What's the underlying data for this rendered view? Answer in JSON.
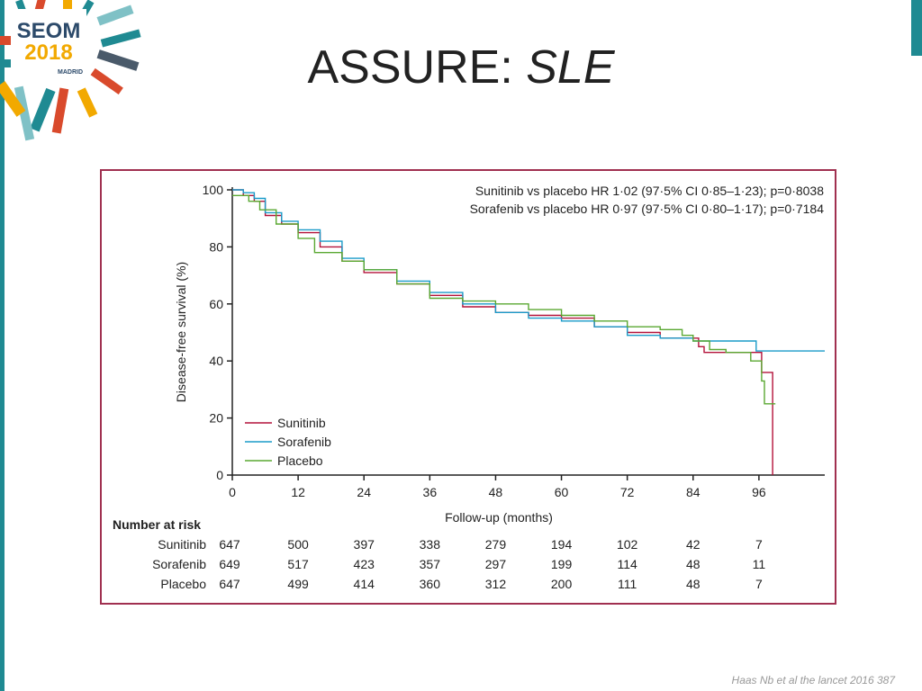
{
  "slide": {
    "title_main": "ASSURE: ",
    "title_italic": "SLE",
    "footer": "Haas Nb et al the lancet 2016 387"
  },
  "logo": {
    "line1": "SEOM",
    "line2": "2018",
    "line3": "MADRID"
  },
  "colors": {
    "accent": "#1f8a92",
    "frame": "#a03050",
    "sunitinib": "#b3123a",
    "sorafenib": "#1a9bc9",
    "placebo": "#5aa832"
  },
  "chart_data": {
    "type": "line",
    "subtype": "kaplan-meier",
    "xlabel": "Follow-up (months)",
    "ylabel": "Disease-free survival (%)",
    "xlim": [
      0,
      108
    ],
    "ylim": [
      0,
      100
    ],
    "xticks": [
      0,
      12,
      24,
      36,
      48,
      60,
      72,
      84,
      96
    ],
    "yticks": [
      0,
      20,
      40,
      60,
      80,
      100
    ],
    "annotations": [
      "Sunitinib vs placebo HR 1·02 (97·5% CI 0·85–1·23); p=0·8038",
      "Sorafenib vs placebo HR 0·97 (97·5% CI 0·80–1·17); p=0·7184"
    ],
    "legend_position": "bottom-left",
    "series": [
      {
        "name": "Sunitinib",
        "color": "#b3123a",
        "points": [
          [
            0,
            100
          ],
          [
            2,
            98
          ],
          [
            4,
            96
          ],
          [
            6,
            91
          ],
          [
            9,
            88
          ],
          [
            12,
            85
          ],
          [
            16,
            80
          ],
          [
            20,
            75
          ],
          [
            24,
            71
          ],
          [
            30,
            67
          ],
          [
            36,
            63
          ],
          [
            42,
            59
          ],
          [
            48,
            57
          ],
          [
            54,
            56
          ],
          [
            60,
            55
          ],
          [
            66,
            52
          ],
          [
            72,
            50
          ],
          [
            78,
            48
          ],
          [
            83,
            48
          ],
          [
            85,
            45
          ],
          [
            86,
            43
          ],
          [
            88,
            43
          ],
          [
            92,
            43
          ],
          [
            95,
            43
          ],
          [
            96,
            43
          ],
          [
            96.5,
            36
          ],
          [
            98,
            36
          ],
          [
            98.5,
            0
          ]
        ]
      },
      {
        "name": "Sorafenib",
        "color": "#1a9bc9",
        "points": [
          [
            0,
            100
          ],
          [
            2,
            99
          ],
          [
            4,
            97
          ],
          [
            6,
            92
          ],
          [
            9,
            89
          ],
          [
            12,
            86
          ],
          [
            16,
            82
          ],
          [
            20,
            76
          ],
          [
            24,
            72
          ],
          [
            30,
            68
          ],
          [
            36,
            64
          ],
          [
            42,
            60
          ],
          [
            48,
            57
          ],
          [
            54,
            55
          ],
          [
            60,
            54
          ],
          [
            66,
            52
          ],
          [
            72,
            49
          ],
          [
            78,
            48
          ],
          [
            84,
            47
          ],
          [
            90,
            47
          ],
          [
            95,
            47
          ],
          [
            95.5,
            43.5
          ],
          [
            108,
            43.5
          ]
        ]
      },
      {
        "name": "Placebo",
        "color": "#5aa832",
        "points": [
          [
            0,
            98
          ],
          [
            3,
            96
          ],
          [
            5,
            93
          ],
          [
            8,
            88
          ],
          [
            12,
            83
          ],
          [
            15,
            78
          ],
          [
            20,
            75
          ],
          [
            24,
            72
          ],
          [
            30,
            67
          ],
          [
            36,
            62
          ],
          [
            42,
            61
          ],
          [
            48,
            60
          ],
          [
            54,
            58
          ],
          [
            60,
            56
          ],
          [
            66,
            54
          ],
          [
            72,
            52
          ],
          [
            78,
            51
          ],
          [
            82,
            49
          ],
          [
            84,
            47
          ],
          [
            87,
            44
          ],
          [
            90,
            43
          ],
          [
            94,
            43
          ],
          [
            94.5,
            40
          ],
          [
            96,
            40
          ],
          [
            96.5,
            33
          ],
          [
            97,
            25
          ],
          [
            99,
            25
          ]
        ]
      }
    ],
    "risk_table": {
      "title": "Number at risk",
      "time_points": [
        0,
        12,
        24,
        36,
        48,
        60,
        72,
        84,
        96
      ],
      "rows": [
        {
          "label": "Sunitinib",
          "values": [
            647,
            500,
            397,
            338,
            279,
            194,
            102,
            42,
            7
          ]
        },
        {
          "label": "Sorafenib",
          "values": [
            649,
            517,
            423,
            357,
            297,
            199,
            114,
            48,
            11
          ]
        },
        {
          "label": "Placebo",
          "values": [
            647,
            499,
            414,
            360,
            312,
            200,
            111,
            48,
            7
          ]
        }
      ]
    }
  }
}
